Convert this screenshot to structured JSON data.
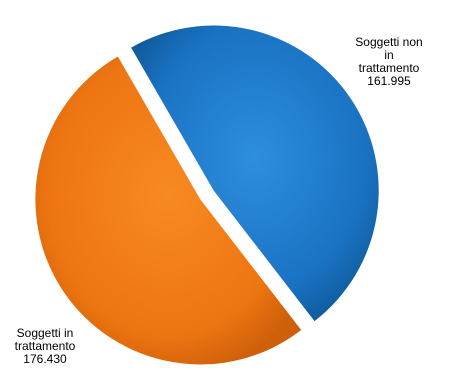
{
  "chart_data": {
    "type": "pie",
    "categories": [
      "Soggetti non in trattamento",
      "Soggetti in trattamento"
    ],
    "values": [
      161995,
      176430
    ],
    "labels": [
      {
        "lines": [
          "Soggetti non",
          "in",
          "trattamento",
          "161.995"
        ]
      },
      {
        "lines": [
          "Soggetti in",
          "trattamento",
          "176.430"
        ]
      }
    ],
    "colors": [
      "#1f78c8",
      "#f07810"
    ],
    "exploded": true,
    "legend": "none"
  }
}
